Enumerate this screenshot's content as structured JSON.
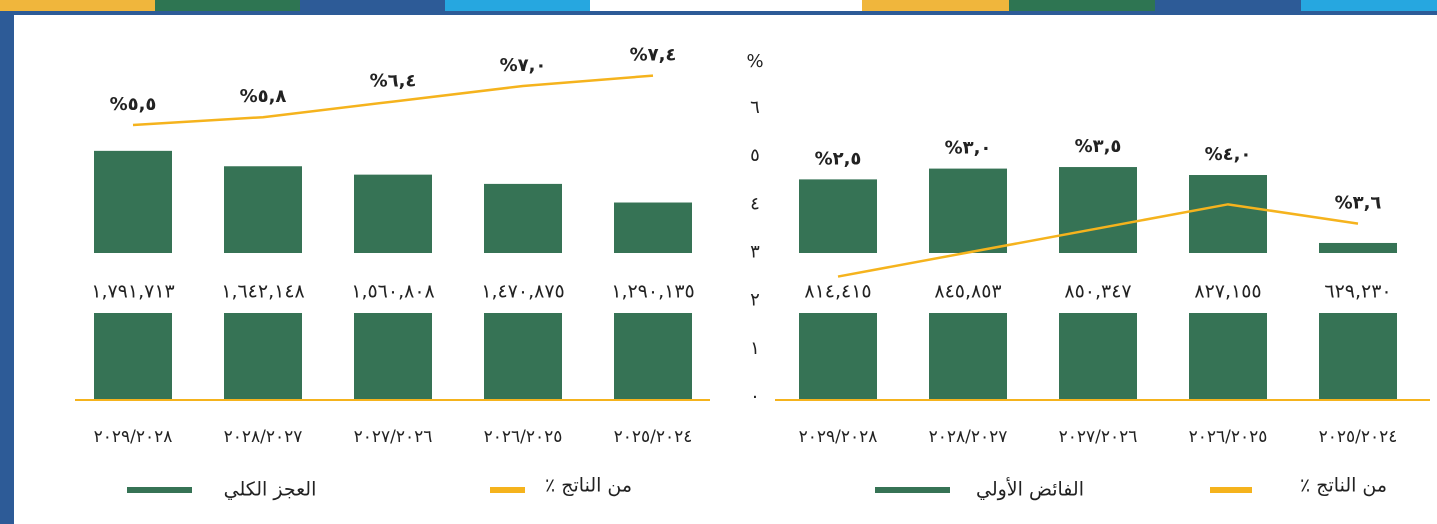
{
  "chart_data": [
    {
      "type": "combo",
      "categories": [
        "٢٠٢٥/٢٠٢٤",
        "٢٠٢٦/٢٠٢٥",
        "٢٠٢٧/٢٠٢٦",
        "٢٠٢٨/٢٠٢٧",
        "٢٠٢٩/٢٠٢٨"
      ],
      "ylabel": "%",
      "ylim": [
        0,
        6
      ],
      "yticks": [
        {
          "value": 0,
          "label": "٠"
        },
        {
          "value": 1,
          "label": "١"
        },
        {
          "value": 2,
          "label": "٢"
        },
        {
          "value": 3,
          "label": "٣"
        },
        {
          "value": 4,
          "label": "٤"
        },
        {
          "value": 5,
          "label": "٥"
        },
        {
          "value": 6,
          "label": "٦"
        }
      ],
      "y2lim": [
        600000,
        900000
      ],
      "series": [
        {
          "name": "الفائض الأولي",
          "color": "#367355",
          "axis": "y2",
          "values": [
            629230,
            827155,
            850347,
            845853,
            814415
          ],
          "value_labels": [
            "٦٢٩,٢٣٠",
            "٨٢٧,١٥٥",
            "٨٥٠,٣٤٧",
            "٨٤٥,٨٥٣",
            "٨١٤,٤١٥"
          ]
        },
        {
          "name": "٪ من الناتج",
          "color": "#f5b31d",
          "values": [
            3.6,
            4.0,
            3.5,
            3.0,
            2.5
          ],
          "value_labels": [
            "%٣,٦",
            "%٤,٠",
            "%٣,٥",
            "%٣,٠",
            "%٢,٥"
          ]
        }
      ]
    },
    {
      "type": "combo",
      "categories": [
        "٢٠٢٥/٢٠٢٤",
        "٢٠٢٦/٢٠٢٥",
        "٢٠٢٧/٢٠٢٦",
        "٢٠٢٨/٢٠٢٧",
        "٢٠٢٩/٢٠٢٨"
      ],
      "ylim": [
        3,
        8
      ],
      "y2lim": [
        800000,
        1800000
      ],
      "series": [
        {
          "name": "العجز الكلي",
          "color": "#367355",
          "axis": "y2",
          "values": [
            1290135,
            1470875,
            1560808,
            1642148,
            1791713
          ],
          "value_labels": [
            "١,٢٩٠,١٣٥",
            "١,٤٧٠,٨٧٥",
            "١,٥٦٠,٨٠٨",
            "١,٦٤٢,١٤٨",
            "١,٧٩١,٧١٣"
          ]
        },
        {
          "name": "٪ من الناتج",
          "color": "#f5b31d",
          "values": [
            7.4,
            7.0,
            6.4,
            5.8,
            5.5
          ],
          "value_labels": [
            "%٧,٤",
            "%٧,٠",
            "%٦,٤",
            "%٥,٨",
            "%٥,٥"
          ]
        }
      ]
    }
  ]
}
